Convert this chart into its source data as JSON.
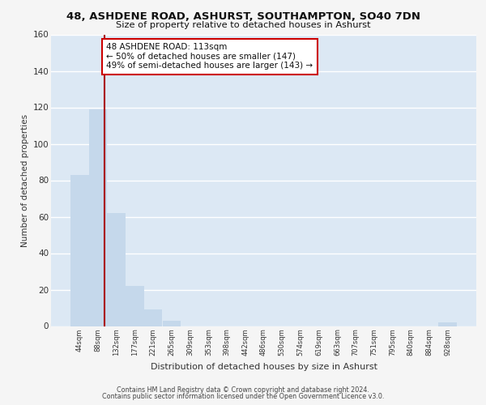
{
  "title": "48, ASHDENE ROAD, ASHURST, SOUTHAMPTON, SO40 7DN",
  "subtitle": "Size of property relative to detached houses in Ashurst",
  "xlabel": "Distribution of detached houses by size in Ashurst",
  "ylabel": "Number of detached properties",
  "bar_labels": [
    "44sqm",
    "88sqm",
    "132sqm",
    "177sqm",
    "221sqm",
    "265sqm",
    "309sqm",
    "353sqm",
    "398sqm",
    "442sqm",
    "486sqm",
    "530sqm",
    "574sqm",
    "619sqm",
    "663sqm",
    "707sqm",
    "751sqm",
    "795sqm",
    "840sqm",
    "884sqm",
    "928sqm"
  ],
  "bar_values": [
    83,
    119,
    62,
    22,
    9,
    3,
    0,
    0,
    0,
    0,
    0,
    0,
    0,
    0,
    0,
    0,
    0,
    0,
    0,
    0,
    2
  ],
  "bar_color": "#c5d8eb",
  "vline_color": "#aa0000",
  "vline_x": 1.35,
  "annotation_title": "48 ASHDENE ROAD: 113sqm",
  "annotation_line1": "← 50% of detached houses are smaller (147)",
  "annotation_line2": "49% of semi-detached houses are larger (143) →",
  "annotation_box_facecolor": "#ffffff",
  "annotation_box_edgecolor": "#cc0000",
  "ylim": [
    0,
    160
  ],
  "yticks": [
    0,
    20,
    40,
    60,
    80,
    100,
    120,
    140,
    160
  ],
  "plot_bg_color": "#dce8f4",
  "fig_bg_color": "#f5f5f5",
  "grid_color": "#ffffff",
  "footer_line1": "Contains HM Land Registry data © Crown copyright and database right 2024.",
  "footer_line2": "Contains public sector information licensed under the Open Government Licence v3.0."
}
